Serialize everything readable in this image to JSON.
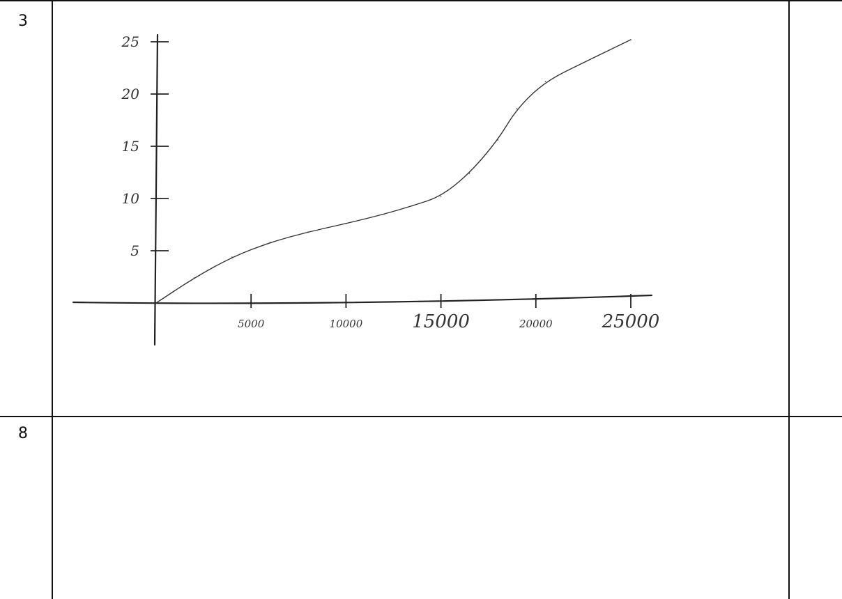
{
  "table": {
    "rows": [
      {
        "number": "3"
      },
      {
        "number": "8"
      }
    ]
  },
  "chart_data": {
    "type": "line",
    "title": "",
    "xlabel": "",
    "ylabel": "",
    "xlim": [
      0,
      25000
    ],
    "ylim": [
      0,
      25
    ],
    "x_ticks": [
      5000,
      10000,
      15000,
      20000,
      25000
    ],
    "x_tick_labels": [
      "5000",
      "10000",
      "15000",
      "20000",
      "25000"
    ],
    "y_ticks": [
      5,
      10,
      15,
      20,
      25
    ],
    "y_tick_labels": [
      "5",
      "10",
      "15",
      "20",
      "25"
    ],
    "grid": false,
    "series": [
      {
        "x": [
          0,
          2000,
          4000,
          6000,
          8000,
          10000,
          12000,
          13500,
          15000,
          16500,
          18000,
          19000,
          20500,
          22500,
          25000
        ],
        "values": [
          0,
          2.4,
          4.4,
          5.8,
          6.8,
          7.6,
          8.5,
          9.3,
          10.2,
          12.4,
          15.6,
          18.6,
          21.2,
          23.0,
          25.2
        ]
      }
    ],
    "line_color": "#333333"
  }
}
